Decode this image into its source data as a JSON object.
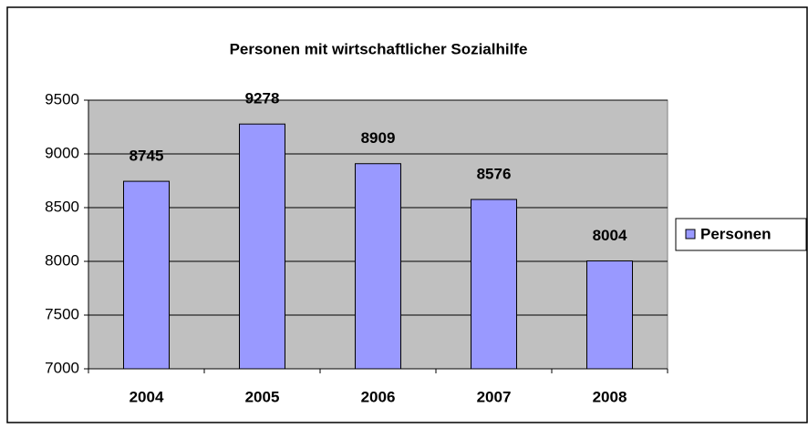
{
  "chart_data": {
    "type": "bar",
    "title": "Personen mit wirtschaftlicher Sozialhilfe",
    "categories": [
      "2004",
      "2005",
      "2006",
      "2007",
      "2008"
    ],
    "series": [
      {
        "name": "Personen",
        "color": "#9999ff",
        "values": [
          8745,
          9278,
          8909,
          8576,
          8004
        ]
      }
    ],
    "ylim": [
      7000,
      9500
    ],
    "yticks": [
      7000,
      7500,
      8000,
      8500,
      9000,
      9500
    ],
    "grid": true,
    "plot_background": "#c0c0c0",
    "legend": "right"
  }
}
